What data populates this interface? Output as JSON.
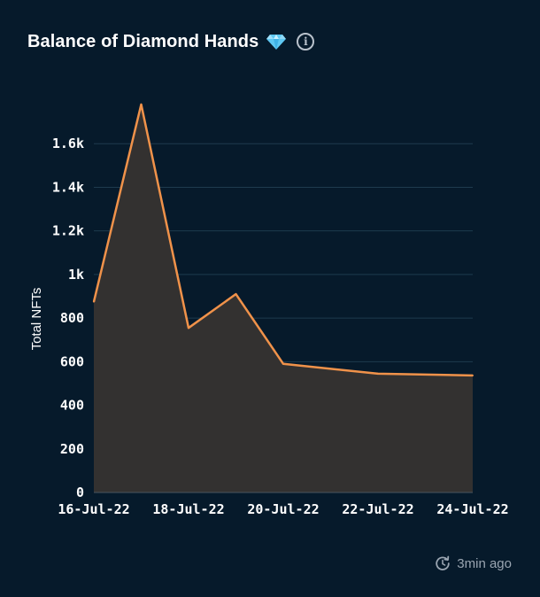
{
  "header": {
    "title": "Balance of Diamond Hands",
    "title_emoji_icon": "gem-icon",
    "info_icon": "info-icon"
  },
  "footer": {
    "updated": "3min ago",
    "refresh_icon": "refresh-clock-icon"
  },
  "colors": {
    "background": "#061a2b",
    "line": "#f0924a",
    "area": "#333130",
    "grid": "#1e3a4e"
  },
  "chart_data": {
    "type": "area",
    "title": "Balance of Diamond Hands",
    "xlabel": "",
    "ylabel": "Total NFTs",
    "x": [
      "2022-07-16",
      "2022-07-17",
      "2022-07-18",
      "2022-07-19",
      "2022-07-20",
      "2022-07-22",
      "2022-07-24"
    ],
    "values": [
      875,
      1780,
      755,
      910,
      590,
      545,
      537
    ],
    "ylim": [
      0,
      1800
    ],
    "yticks": [
      0,
      200,
      400,
      600,
      800,
      1000,
      1200,
      1400,
      1600
    ],
    "ytick_labels": [
      "0",
      "200",
      "400",
      "600",
      "800",
      "1k",
      "1.2k",
      "1.4k",
      "1.6k"
    ],
    "xticks": [
      "2022-07-16",
      "2022-07-18",
      "2022-07-20",
      "2022-07-22",
      "2022-07-24"
    ],
    "xtick_labels": [
      "16-Jul-22",
      "18-Jul-22",
      "20-Jul-22",
      "22-Jul-22",
      "24-Jul-22"
    ],
    "grid": true,
    "legend": "none"
  }
}
